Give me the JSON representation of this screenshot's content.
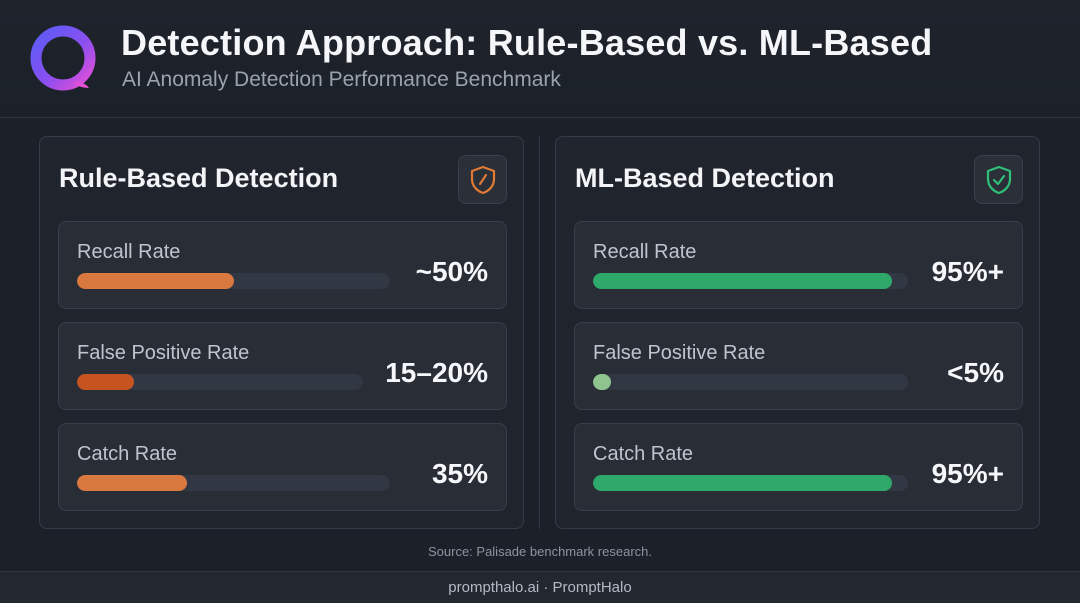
{
  "header": {
    "title": "Detection Approach: Rule-Based vs. ML-Based",
    "subtitle": "AI Anomaly Detection Performance Benchmark",
    "logo_icon": "ring-logo-icon"
  },
  "colors": {
    "background": "#1b2029",
    "rule_bar": "#d9783f",
    "rule_bar_dark": "#c55420",
    "ml_bar": "#2ea96a",
    "ml_bar_light": "#8fc48f",
    "rule_badge": "#e07a35",
    "ml_badge": "#2fbf78"
  },
  "chart_data": [
    {
      "type": "bar",
      "title": "Rule-Based Detection",
      "badge_icon": "shield-slash-icon",
      "categories": [
        "Recall Rate",
        "False Positive Rate",
        "Catch Rate"
      ],
      "values": [
        50,
        20,
        35
      ],
      "value_labels": [
        "~50%",
        "15–20%",
        "35%"
      ],
      "bar_colors": [
        "#d9783f",
        "#c55420",
        "#d9783f"
      ],
      "ylim": [
        0,
        100
      ]
    },
    {
      "type": "bar",
      "title": "ML-Based Detection",
      "badge_icon": "shield-check-icon",
      "categories": [
        "Recall Rate",
        "False Positive Rate",
        "Catch Rate"
      ],
      "values": [
        95,
        5,
        95
      ],
      "value_labels": [
        "95%+",
        "<5%",
        "95%+"
      ],
      "bar_colors": [
        "#2ea96a",
        "#8fc48f",
        "#2ea96a"
      ],
      "ylim": [
        0,
        100
      ]
    }
  ],
  "source": "Source: Palisade benchmark research.",
  "footer": "prompthalo.ai · PromptHalo"
}
